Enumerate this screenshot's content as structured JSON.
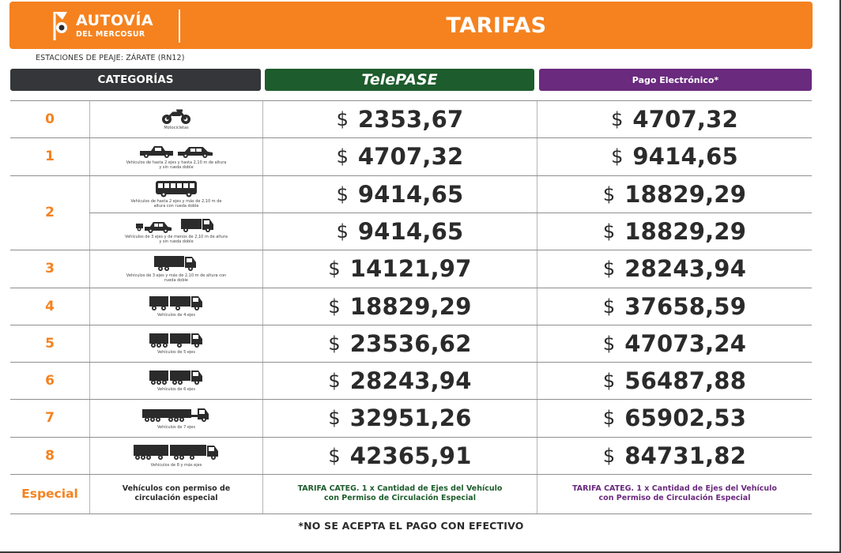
{
  "colors": {
    "orange": "#f5821f",
    "dark": "#35363a",
    "telepase_green": "#1d5c2c",
    "electronic_purple": "#6a2a7e"
  },
  "header": {
    "logo": {
      "title": "AUTOVÍA",
      "subtitle": "DEL MERCOSUR"
    },
    "title": "TARIFAS"
  },
  "station": "ESTACIONES DE PEAJE: ZÁRATE (RN12)",
  "columns": {
    "categories": "CATEGORÍAS",
    "telepase": "TelePASE",
    "electronic": "Pago Electrónico*"
  },
  "currency": "$",
  "rows": [
    {
      "category": "0",
      "icon": "motorcycle-icon",
      "caption": "Motocicletas",
      "telepase": "2353,67",
      "electronic": "4707,32"
    },
    {
      "category": "1",
      "icon": "car-pickup-icon",
      "caption": "Vehículos de hasta 2 ejes y hasta 2,10 m de altura y sin rueda doble",
      "telepase": "4707,32",
      "electronic": "9414,65"
    },
    {
      "category": "2",
      "icon": "bus-icon",
      "caption": "Vehículos de hasta 2 ejes y más de 2,10 m de altura con rueda doble",
      "telepase": "9414,65",
      "electronic": "18829,29"
    },
    {
      "category": "",
      "icon": "car-trailer-truck-icon",
      "caption": "Vehículos de 3 ejes y de menos de 2,10 m de altura y sin rueda doble",
      "telepase": "9414,65",
      "electronic": "18829,29"
    },
    {
      "category": "3",
      "icon": "truck-3-axle-icon",
      "caption": "Vehículos de 3 ejes y más de 2,10 m de altura con rueda doble",
      "telepase": "14121,97",
      "electronic": "28243,94"
    },
    {
      "category": "4",
      "icon": "truck-4-axle-icon",
      "caption": "Vehículos de 4 ejes",
      "telepase": "18829,29",
      "electronic": "37658,59"
    },
    {
      "category": "5",
      "icon": "truck-5-axle-icon",
      "caption": "Vehículos de 5 ejes",
      "telepase": "23536,62",
      "electronic": "47073,24"
    },
    {
      "category": "6",
      "icon": "truck-6-axle-icon",
      "caption": "Vehículos de 6 ejes",
      "telepase": "28243,94",
      "electronic": "56487,88"
    },
    {
      "category": "7",
      "icon": "truck-7-axle-icon",
      "caption": "Vehículos de 7 ejes",
      "telepase": "32951,26",
      "electronic": "65902,53"
    },
    {
      "category": "8",
      "icon": "truck-8-axle-icon",
      "caption": "Vehículos de 8 y más ejes",
      "telepase": "42365,91",
      "electronic": "84731,82"
    }
  ],
  "special": {
    "label": "Especial",
    "description": "Vehículos con permiso de circulación especial",
    "telepase": "TARIFA CATEG. 1 x Cantidad de Ejes del Vehículo con Permiso de Circulación Especial",
    "electronic": "TARIFA CATEG. 1 x Cantidad de Ejes del Vehículo con Permiso de Circulación Especial"
  },
  "footnote": "*NO SE ACEPTA EL PAGO CON EFECTIVO"
}
